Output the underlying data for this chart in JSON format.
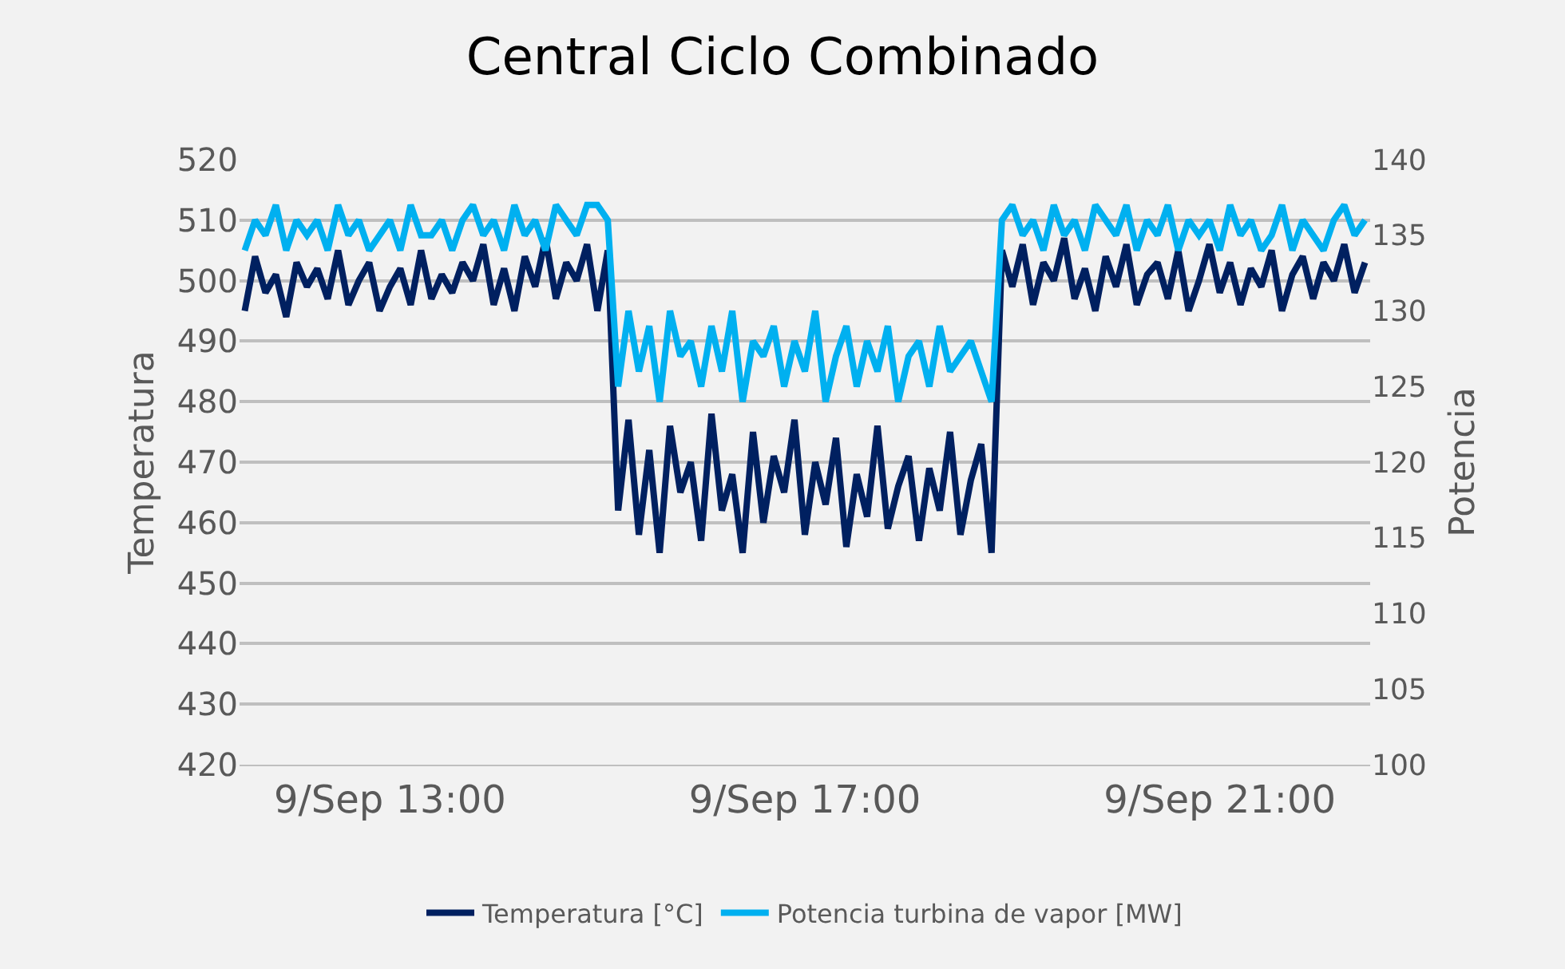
{
  "chart_data": {
    "type": "line",
    "title": "Central Ciclo Combinado",
    "ylabel": "Temperatura",
    "y2label": "Potencia",
    "categories": [
      null,
      null,
      null,
      null,
      null,
      null,
      null,
      null,
      null,
      null,
      null,
      null,
      null,
      null,
      "9/Sep 13:00",
      null,
      null,
      null,
      null,
      null,
      null,
      null,
      null,
      null,
      null,
      null,
      null,
      null,
      null,
      null,
      null,
      null,
      null,
      null,
      null,
      null,
      null,
      null,
      null,
      null,
      null,
      null,
      null,
      null,
      null,
      null,
      null,
      null,
      null,
      null,
      null,
      null,
      null,
      null,
      "9/Sep 17:00",
      null,
      null,
      null,
      null,
      null,
      null,
      null,
      null,
      null,
      null,
      null,
      null,
      null,
      null,
      null,
      null,
      null,
      null,
      null,
      null,
      null,
      null,
      null,
      null,
      null,
      null,
      null,
      null,
      null,
      null,
      null,
      null,
      null,
      null,
      null,
      null,
      null,
      null,
      null,
      "9/Sep 21:00",
      null,
      null,
      null,
      null,
      null,
      null,
      null,
      null,
      null,
      null,
      null,
      null,
      null,
      null
    ],
    "series": [
      {
        "name": "Temperatura [°C]",
        "color": "#002060",
        "values": [
          495,
          504,
          498,
          501,
          494,
          503,
          499,
          502,
          497,
          505,
          496,
          500,
          503,
          495,
          499,
          502,
          496,
          505,
          497,
          501,
          498,
          503,
          500,
          506,
          496,
          502,
          495,
          504,
          499,
          507,
          497,
          503,
          500,
          506,
          495,
          505,
          462,
          477,
          458,
          472,
          455,
          476,
          465,
          470,
          457,
          478,
          462,
          468,
          455,
          475,
          460,
          471,
          465,
          477,
          458,
          470,
          463,
          474,
          456,
          468,
          461,
          476,
          459,
          466,
          471,
          457,
          469,
          462,
          475,
          458,
          467,
          473,
          455,
          505,
          499,
          506,
          496,
          503,
          500,
          507,
          497,
          502,
          495,
          504,
          499,
          506,
          496,
          501,
          503,
          497,
          505,
          495,
          500,
          506,
          498,
          503,
          496,
          502,
          499,
          505,
          495,
          501,
          504,
          497,
          503,
          500,
          506,
          498,
          503
        ]
      },
      {
        "name": "Potencia turbina de vapor [MW]",
        "color": "#00b0f0",
        "axis": "y2",
        "values": [
          134,
          136,
          135,
          137,
          134,
          136,
          135,
          136,
          134,
          137,
          135,
          136,
          134,
          135,
          136,
          134,
          137,
          135,
          135,
          136,
          134,
          136,
          137,
          135,
          136,
          134,
          137,
          135,
          136,
          134,
          137,
          136,
          135,
          137,
          137,
          136,
          125,
          130,
          126,
          129,
          124,
          130,
          127,
          128,
          125,
          129,
          126,
          130,
          124,
          128,
          127,
          129,
          125,
          128,
          126,
          130,
          124,
          127,
          129,
          125,
          128,
          126,
          129,
          124,
          127,
          128,
          125,
          129,
          126,
          127,
          128,
          126,
          124,
          136,
          137,
          135,
          136,
          134,
          137,
          135,
          136,
          134,
          137,
          136,
          135,
          137,
          134,
          136,
          135,
          137,
          134,
          136,
          135,
          136,
          134,
          137,
          135,
          136,
          134,
          135,
          137,
          134,
          136,
          135,
          134,
          136,
          137,
          135,
          136
        ]
      }
    ],
    "ylim": [
      420,
      520
    ],
    "yticks": [
      420,
      430,
      440,
      450,
      460,
      470,
      480,
      490,
      500,
      510,
      520
    ],
    "y2lim": [
      100,
      140
    ],
    "y2ticks": [
      100,
      105,
      110,
      115,
      120,
      125,
      130,
      135,
      140
    ],
    "grid": "y",
    "legend": "bottom",
    "marker": "none",
    "line_style": "solid"
  }
}
